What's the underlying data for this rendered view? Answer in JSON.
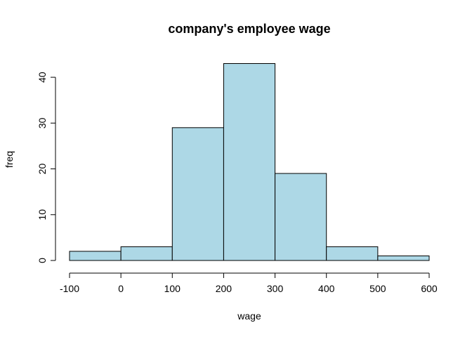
{
  "chart_data": {
    "type": "bar",
    "title": "company's employee wage",
    "xlabel": "wage",
    "ylabel": "freq",
    "bins": [
      {
        "from": -100,
        "to": 0,
        "count": 2
      },
      {
        "from": 0,
        "to": 100,
        "count": 3
      },
      {
        "from": 100,
        "to": 200,
        "count": 29
      },
      {
        "from": 200,
        "to": 300,
        "count": 43
      },
      {
        "from": 300,
        "to": 400,
        "count": 19
      },
      {
        "from": 400,
        "to": 500,
        "count": 3
      },
      {
        "from": 500,
        "to": 600,
        "count": 1
      }
    ],
    "xticks": [
      -100,
      0,
      100,
      200,
      300,
      400,
      500,
      600
    ],
    "yticks": [
      0,
      10,
      20,
      30,
      40
    ],
    "xlim": [
      -100,
      600
    ],
    "ylim": [
      0,
      43
    ],
    "grid": false,
    "bar_color": "#add8e6",
    "edge_color": "#000000"
  }
}
